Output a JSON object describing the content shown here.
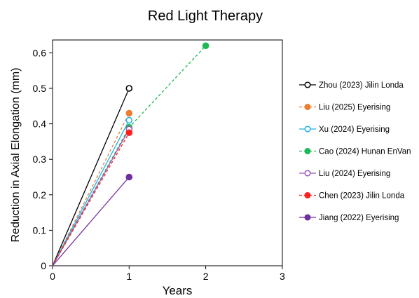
{
  "chart_data": {
    "type": "line",
    "title": "Red Light Therapy",
    "xlabel": "Years",
    "ylabel": "Reduction in Axial Elongation (mm)",
    "xlim": [
      0,
      3
    ],
    "ylim": [
      0,
      0.65
    ],
    "xticks": [
      0,
      1,
      2,
      3
    ],
    "xtick_labels": [
      "0",
      "1",
      "2",
      "3"
    ],
    "yticks": [
      0,
      0.1,
      0.2,
      0.3,
      0.4,
      0.5,
      0.6
    ],
    "ytick_labels": [
      "0",
      "0.1",
      "0.2",
      "0.3",
      "0.4",
      "0.5",
      "0.6"
    ],
    "grid": false,
    "legend_position": "right",
    "series": [
      {
        "name": "Zhou (2023) Jilin Londa",
        "x": [
          0,
          1
        ],
        "y": [
          0,
          0.5
        ],
        "color": "#000000",
        "dash": "solid",
        "marker": "open"
      },
      {
        "name": "Liu (2025) Eyerising",
        "x": [
          0,
          1
        ],
        "y": [
          0,
          0.43
        ],
        "color": "#ed7d31",
        "dash": "dashed",
        "marker": "filled"
      },
      {
        "name": "Xu (2024) Eyerising",
        "x": [
          0,
          1
        ],
        "y": [
          0,
          0.41
        ],
        "color": "#1fb4e8",
        "dash": "solid",
        "marker": "open"
      },
      {
        "name": "Cao (2024) Hunan EnVan",
        "x": [
          0,
          1,
          2
        ],
        "y": [
          0,
          0.39,
          0.62
        ],
        "color": "#1db954",
        "dash": "dashed",
        "marker": "filled"
      },
      {
        "name": "Liu (2024) Eyerising",
        "x": [
          0,
          1
        ],
        "y": [
          0,
          0.385
        ],
        "color": "#9b59b6",
        "dash": "solid",
        "marker": "open"
      },
      {
        "name": "Chen (2023) Jilin Londa",
        "x": [
          0,
          1
        ],
        "y": [
          0,
          0.375
        ],
        "color": "#ff2020",
        "dash": "dashed",
        "marker": "filled"
      },
      {
        "name": "Jiang (2022) Eyerising",
        "x": [
          0,
          1
        ],
        "y": [
          0,
          0.25
        ],
        "color": "#7030a0",
        "dash": "solid",
        "marker": "filled"
      }
    ]
  }
}
